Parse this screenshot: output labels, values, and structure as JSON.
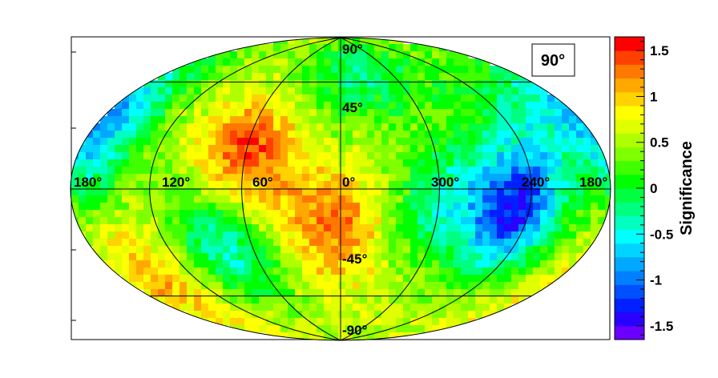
{
  "chart_data": {
    "type": "heatmap",
    "projection": "hammer-aitoff",
    "title": "90°",
    "colorbar": {
      "label": "Significance",
      "range": [
        -1.65,
        1.65
      ],
      "tick_labels": [
        "1.5",
        "1",
        "0.5",
        "0",
        "-0.5",
        "-1",
        "-1.5"
      ],
      "tick_values": [
        1.5,
        1,
        0.5,
        0,
        -0.5,
        -1,
        -1.5
      ],
      "palette": [
        "#6a00ff",
        "#2a00ff",
        "#0020ff",
        "#0050ff",
        "#0080ff",
        "#00a8ff",
        "#00d4ff",
        "#00ffff",
        "#00ffc0",
        "#00ff80",
        "#00ff40",
        "#00ff00",
        "#40ff00",
        "#80ff00",
        "#b0ff00",
        "#e0ff00",
        "#ffff00",
        "#ffd200",
        "#ffa800",
        "#ff7800",
        "#ff4000",
        "#ff0000"
      ]
    },
    "longitude_labels": [
      "180°",
      "120°",
      "60°",
      "0°",
      "300°",
      "240°",
      "180°"
    ],
    "latitude_labels": [
      "90°",
      "45°",
      "-45°",
      "-90°"
    ],
    "grid": true,
    "hotspots": [
      {
        "lon": 60,
        "lat": 20,
        "value": 1.4
      },
      {
        "lon": 5,
        "lat": -20,
        "value": 1.2
      },
      {
        "lon": 250,
        "lat": -10,
        "value": -1.3
      },
      {
        "lon": 170,
        "lat": 25,
        "value": -0.9
      },
      {
        "lon": 80,
        "lat": -30,
        "value": -0.5
      },
      {
        "lon": 330,
        "lat": 60,
        "value": -0.4
      },
      {
        "lon": 300,
        "lat": -5,
        "value": -0.4
      },
      {
        "lon": 150,
        "lat": -40,
        "value": 1.0
      },
      {
        "lon": 320,
        "lat": 35,
        "value": 0.7
      },
      {
        "lon": 100,
        "lat": -5,
        "value": 0.4
      },
      {
        "lon": 225,
        "lat": 30,
        "value": -0.2
      },
      {
        "lon": 40,
        "lat": 50,
        "value": 0.3
      }
    ]
  }
}
